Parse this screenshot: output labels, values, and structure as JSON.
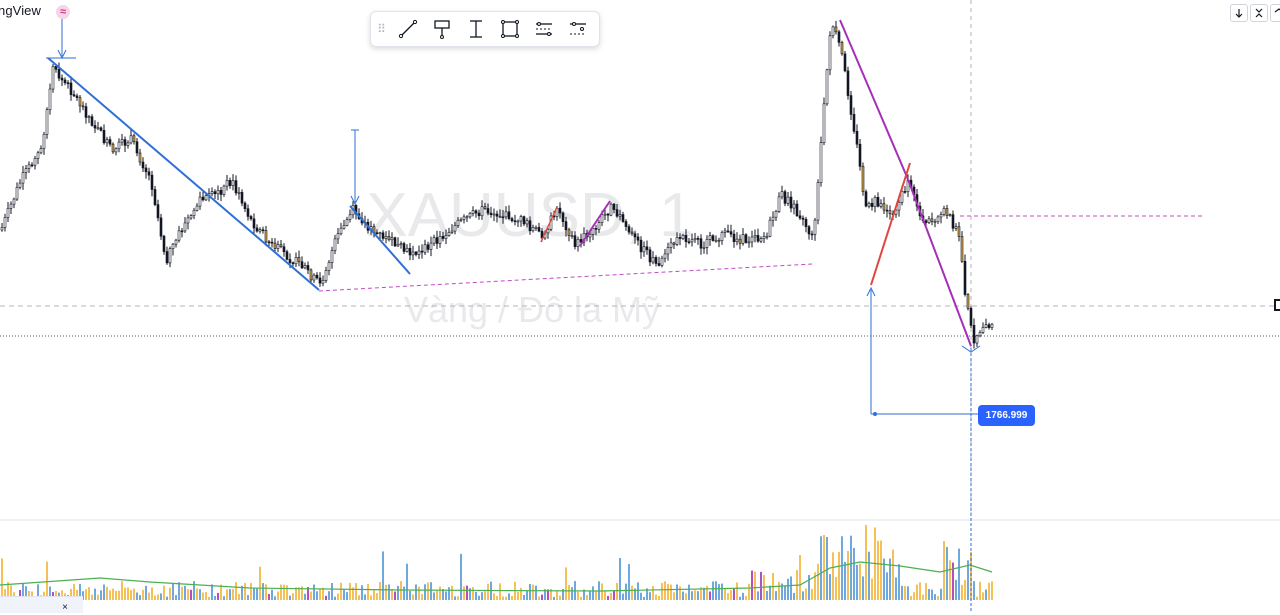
{
  "brand": {
    "text": "ngView",
    "badge": "≈"
  },
  "watermark": {
    "symbol": "XAUUSD, 1",
    "description": "Vàng / Đô la Mỹ"
  },
  "toolbar": {
    "tools": [
      {
        "name": "trend-line-tool",
        "icon": "trend-line-icon"
      },
      {
        "name": "flag-tool",
        "icon": "flag-marker-icon"
      },
      {
        "name": "vertical-range-tool",
        "icon": "vertical-range-icon"
      },
      {
        "name": "rectangle-tool",
        "icon": "rectangle-icon"
      },
      {
        "name": "parallel-channel-tool",
        "icon": "parallel-channel-icon"
      },
      {
        "name": "regression-channel-tool",
        "icon": "regression-channel-icon"
      }
    ]
  },
  "top_right_buttons": [
    {
      "name": "scroll-down-button",
      "icon": "arrow-down-icon"
    },
    {
      "name": "collapse-button",
      "icon": "collapse-icon"
    },
    {
      "name": "maximize-button",
      "icon": "maximize-icon"
    }
  ],
  "measure_label": "1766.999",
  "close_label": "×",
  "colors": {
    "trend_blue": "#2f6fd6",
    "trend_purple": "#a62fb8",
    "trend_red": "#e0463f",
    "dashed_magenta": "#c34bc3",
    "label_bg": "#2962ff",
    "volume_up": "#f5c056",
    "volume_down": "#6fa8dc",
    "volume_spike": "#b24ec2",
    "volume_ma": "#4caf50"
  }
}
